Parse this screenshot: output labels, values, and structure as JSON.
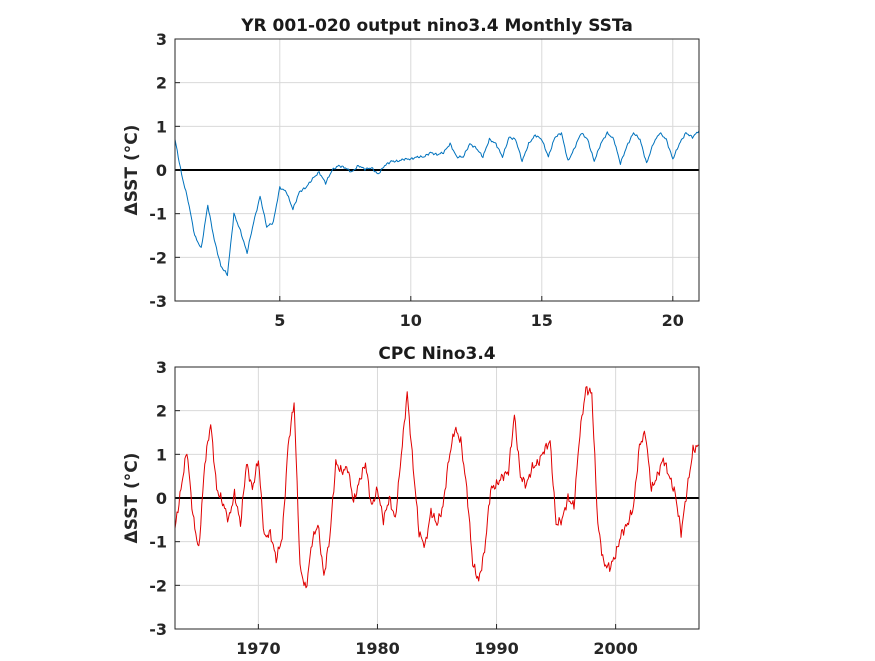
{
  "chart_data": [
    {
      "type": "line",
      "title": "YR 001-020 output nino3.4 Monthly SSTa",
      "ylabel": "ΔSST (°C)",
      "xlabel": "",
      "xlim": [
        1,
        21
      ],
      "ylim": [
        -3,
        3
      ],
      "xticks": [
        5,
        10,
        15,
        20
      ],
      "yticks": [
        -3,
        -2,
        -1,
        0,
        1,
        2,
        3
      ],
      "grid": true,
      "reference_line": 0,
      "series": [
        {
          "color": "#0072bd",
          "x": [
            1.0,
            1.25,
            1.5,
            1.75,
            2.0,
            2.25,
            2.5,
            2.75,
            3.0,
            3.25,
            3.5,
            3.75,
            4.0,
            4.25,
            4.5,
            4.75,
            5.0,
            5.25,
            5.5,
            5.75,
            6.0,
            6.25,
            6.5,
            6.75,
            7.0,
            7.25,
            7.5,
            7.75,
            8.0,
            8.25,
            8.5,
            8.75,
            9.0,
            9.25,
            9.5,
            9.75,
            10.0,
            10.25,
            10.5,
            10.75,
            11.0,
            11.25,
            11.5,
            11.75,
            12.0,
            12.25,
            12.5,
            12.75,
            13.0,
            13.25,
            13.5,
            13.75,
            14.0,
            14.25,
            14.5,
            14.75,
            15.0,
            15.25,
            15.5,
            15.75,
            16.0,
            16.25,
            16.5,
            16.75,
            17.0,
            17.25,
            17.5,
            17.75,
            18.0,
            18.25,
            18.5,
            18.75,
            19.0,
            19.25,
            19.5,
            19.75,
            20.0,
            20.25,
            20.5,
            20.75,
            21.0
          ],
          "y": [
            0.7,
            -0.1,
            -0.7,
            -1.5,
            -1.8,
            -0.8,
            -1.6,
            -2.2,
            -2.4,
            -1.0,
            -1.4,
            -1.9,
            -1.2,
            -0.6,
            -1.3,
            -1.2,
            -0.4,
            -0.5,
            -0.9,
            -0.5,
            -0.4,
            -0.2,
            -0.05,
            -0.3,
            0.0,
            0.1,
            0.05,
            -0.05,
            0.1,
            0.02,
            0.05,
            -0.1,
            0.1,
            0.2,
            0.2,
            0.25,
            0.25,
            0.3,
            0.3,
            0.4,
            0.35,
            0.4,
            0.6,
            0.3,
            0.3,
            0.6,
            0.5,
            0.3,
            0.7,
            0.6,
            0.3,
            0.75,
            0.7,
            0.2,
            0.6,
            0.8,
            0.7,
            0.3,
            0.75,
            0.85,
            0.2,
            0.5,
            0.85,
            0.7,
            0.2,
            0.6,
            0.85,
            0.7,
            0.15,
            0.55,
            0.85,
            0.7,
            0.15,
            0.6,
            0.85,
            0.7,
            0.25,
            0.6,
            0.85,
            0.75,
            0.9
          ]
        }
      ]
    },
    {
      "type": "line",
      "title": "CPC Nino3.4",
      "ylabel": "ΔSST (°C)",
      "xlabel": "",
      "xlim": [
        1963,
        2007
      ],
      "ylim": [
        -3,
        3
      ],
      "xticks": [
        1970,
        1980,
        1990,
        2000
      ],
      "yticks": [
        -3,
        -2,
        -1,
        0,
        1,
        2,
        3
      ],
      "grid": true,
      "reference_line": 0,
      "series": [
        {
          "color": "#e00000",
          "x": [
            1963.0,
            1963.5,
            1964.0,
            1964.5,
            1965.0,
            1965.5,
            1966.0,
            1966.5,
            1967.0,
            1967.5,
            1968.0,
            1968.5,
            1969.0,
            1969.5,
            1970.0,
            1970.5,
            1971.0,
            1971.5,
            1972.0,
            1972.5,
            1973.0,
            1973.5,
            1974.0,
            1974.5,
            1975.0,
            1975.5,
            1976.0,
            1976.5,
            1977.0,
            1977.5,
            1978.0,
            1978.5,
            1979.0,
            1979.5,
            1980.0,
            1980.5,
            1981.0,
            1981.5,
            1982.0,
            1982.5,
            1983.0,
            1983.5,
            1984.0,
            1984.5,
            1985.0,
            1985.5,
            1986.0,
            1986.5,
            1987.0,
            1987.5,
            1988.0,
            1988.5,
            1989.0,
            1989.5,
            1990.0,
            1990.5,
            1991.0,
            1991.5,
            1992.0,
            1992.5,
            1993.0,
            1993.5,
            1994.0,
            1994.5,
            1995.0,
            1995.5,
            1996.0,
            1996.5,
            1997.0,
            1997.5,
            1998.0,
            1998.5,
            1999.0,
            1999.5,
            2000.0,
            2000.5,
            2001.0,
            2001.5,
            2002.0,
            2002.5,
            2003.0,
            2003.5,
            2004.0,
            2004.5,
            2005.0,
            2005.5,
            2006.0,
            2006.5,
            2007.0
          ],
          "y": [
            -0.7,
            0.2,
            1.1,
            -0.4,
            -1.2,
            0.8,
            1.7,
            0.2,
            -0.1,
            -0.5,
            0.1,
            -0.6,
            0.8,
            0.2,
            0.9,
            -0.9,
            -0.8,
            -1.4,
            -0.9,
            1.2,
            2.2,
            -1.6,
            -2.1,
            -1.0,
            -0.6,
            -1.8,
            -0.9,
            0.8,
            0.6,
            0.7,
            -0.1,
            0.4,
            0.8,
            -0.2,
            0.2,
            -0.5,
            0.0,
            -0.5,
            1.0,
            2.4,
            0.7,
            -0.8,
            -1.1,
            -0.3,
            -0.6,
            -0.2,
            0.9,
            1.6,
            1.3,
            0.2,
            -1.5,
            -1.9,
            -1.2,
            0.2,
            0.3,
            0.5,
            0.6,
            1.9,
            0.5,
            0.3,
            0.7,
            0.8,
            1.1,
            1.3,
            -0.6,
            -0.5,
            0.0,
            -0.2,
            1.5,
            2.5,
            2.4,
            -0.6,
            -1.5,
            -1.6,
            -1.3,
            -0.8,
            -0.6,
            -0.2,
            1.2,
            1.5,
            0.2,
            0.5,
            0.9,
            0.5,
            0.1,
            -0.8,
            0.2,
            1.1,
            1.2
          ]
        }
      ]
    }
  ]
}
